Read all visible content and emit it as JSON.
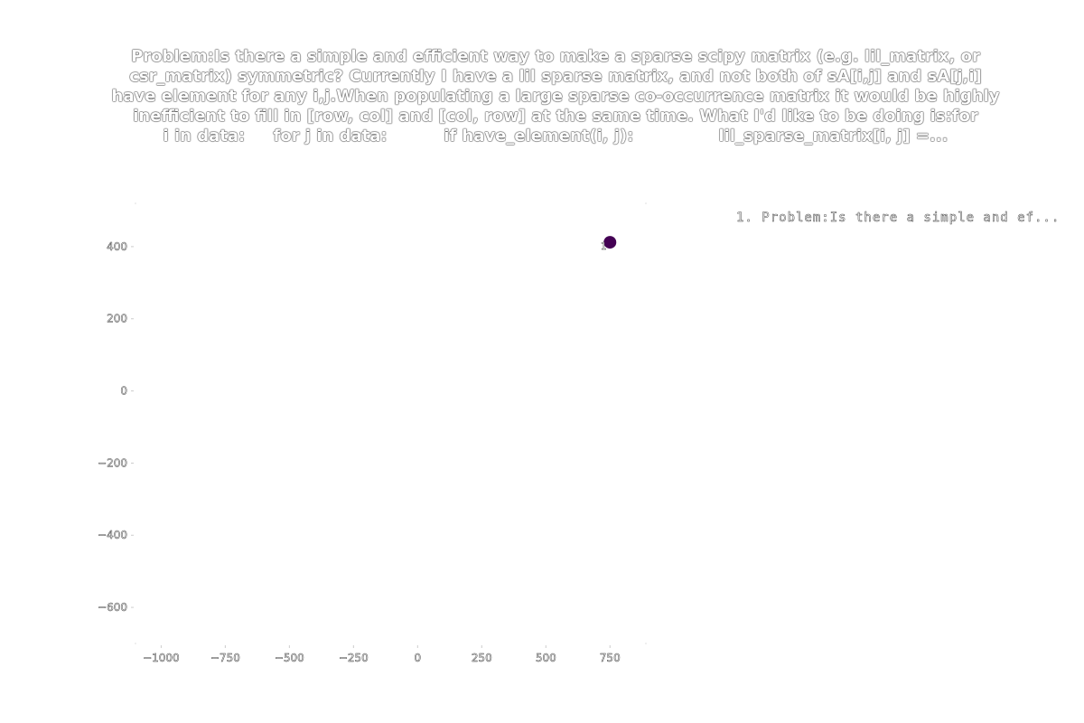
{
  "chart_data": {
    "type": "scatter",
    "title_lines": [
      "Problem:Is there a simple and efficient way to make a sparse scipy matrix (e.g. lil_matrix, or",
      "csr_matrix) symmetric? Currently I have a lil sparse matrix, and not both of sA[i,j] and sA[j,i]",
      "have element for any i,j.When populating a large sparse co-occurrence matrix it would be highly",
      "inefficient to fill in [row, col] and [col, row] at the same time. What I'd like to be doing is:for",
      "i in data:     for j in data:          if have_element(i, j):               lil_sparse_matrix[i, j] =..."
    ],
    "xlabel": "",
    "ylabel": "",
    "xlim": [
      -1100,
      890
    ],
    "ylim": [
      -700,
      520
    ],
    "x_ticks": [
      -1000,
      -750,
      -500,
      -250,
      0,
      250,
      500,
      750
    ],
    "x_tick_labels": [
      "−1000",
      "−750",
      "−500",
      "−250",
      "0",
      "250",
      "500",
      "750"
    ],
    "y_ticks": [
      400,
      200,
      0,
      -200,
      -400,
      -600
    ],
    "y_tick_labels": [
      "400",
      "200",
      "0",
      "−200",
      "−400",
      "−600"
    ],
    "grid": false,
    "legend_placement": "top-right, outside plot",
    "points": [
      {
        "x": 750,
        "y": 412,
        "label": "1",
        "color": "#440154"
      }
    ],
    "legend": [
      {
        "text": "1. Problem:Is there a simple and ef..."
      }
    ]
  }
}
